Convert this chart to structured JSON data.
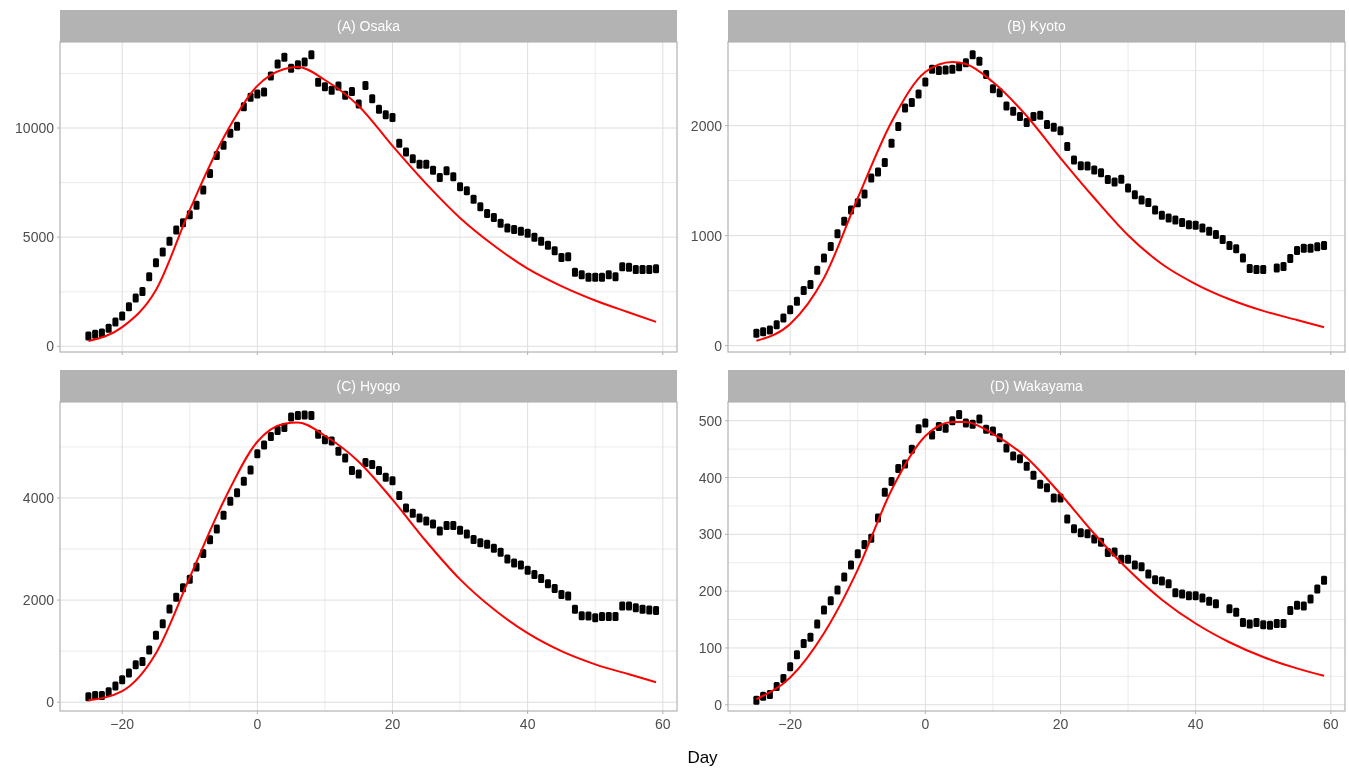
{
  "chart_data": [
    {
      "type": "scatter",
      "title": "(A) Osaka",
      "xlim": [
        -29.2,
        62.1
      ],
      "xticks": [
        -20,
        {
          "value": -10,
          "label": null
        },
        0,
        {
          "value": 10,
          "label": null
        },
        20,
        {
          "value": 30,
          "label": null
        },
        40,
        {
          "value": 50,
          "label": null
        },
        60
      ],
      "ylim": [
        -260,
        13940
      ],
      "yticks": [
        0,
        {
          "value": 2500,
          "label": null
        },
        5000,
        {
          "value": 7500,
          "label": null
        },
        10000,
        {
          "value": 12500,
          "label": null
        }
      ],
      "grid": true,
      "tick_labels": "y",
      "marker": "square",
      "series": [
        {
          "color": "#000000",
          "x": [
            -25,
            -24,
            -23,
            -22,
            -21,
            -20,
            -19,
            -18,
            -17,
            -16,
            -15,
            -14,
            -13,
            -12,
            -11,
            -10,
            -9,
            -8,
            -7,
            -6,
            -5,
            -4,
            -3,
            -2,
            -1,
            0,
            1,
            2,
            3,
            4,
            5,
            6,
            7,
            8,
            9,
            10,
            11,
            12,
            13,
            14,
            15,
            16,
            17,
            18,
            19,
            20,
            21,
            22,
            23,
            24,
            25,
            26,
            27,
            28,
            29,
            30,
            31,
            32,
            33,
            34,
            35,
            36,
            37,
            38,
            39,
            40,
            41,
            42,
            43,
            44,
            45,
            46,
            47,
            48,
            49,
            50,
            51,
            52,
            53,
            54,
            55,
            56,
            57,
            58,
            59
          ],
          "values": [
            476,
            550,
            605,
            824,
            1118,
            1392,
            1814,
            2217,
            2510,
            3188,
            3829,
            4324,
            4818,
            5331,
            5661,
            6027,
            6467,
            7163,
            7914,
            8739,
            9215,
            9765,
            10076,
            10974,
            11413,
            11560,
            11652,
            12384,
            12934,
            13245,
            12732,
            12897,
            13025,
            13355,
            12091,
            11890,
            11725,
            11926,
            11505,
            11670,
            11102,
            11945,
            11340,
            10864,
            10607,
            10479,
            9307,
            8903,
            8592,
            8336,
            8336,
            8061,
            7731,
            8042,
            7768,
            7310,
            7126,
            6742,
            6394,
            6082,
            5899,
            5643,
            5423,
            5349,
            5276,
            5185,
            5001,
            4818,
            4635,
            4378,
            4067,
            4104,
            3389,
            3279,
            3169,
            3169,
            3169,
            3279,
            3188,
            3646,
            3627,
            3517,
            3517,
            3517,
            3554
          ]
        },
        {
          "type": "line",
          "marker": "none",
          "color": "#ff0000",
          "x": [
            -25,
            -20,
            -15,
            -10,
            -5,
            0,
            4,
            6,
            10,
            15,
            20,
            25,
            30,
            35,
            40,
            45,
            50,
            55,
            59
          ],
          "values": [
            240,
            880,
            2580,
            6250,
            9550,
            11930,
            12700,
            12790,
            12200,
            11010,
            9180,
            7440,
            5880,
            4620,
            3560,
            2760,
            2100,
            1550,
            1120
          ]
        }
      ]
    },
    {
      "type": "scatter",
      "title": "(B) Kyoto",
      "xlim": [
        -29.2,
        62.1
      ],
      "xticks": [
        -20,
        {
          "value": -10,
          "label": null
        },
        0,
        {
          "value": 10,
          "label": null
        },
        20,
        {
          "value": 30,
          "label": null
        },
        40,
        {
          "value": 50,
          "label": null
        },
        60
      ],
      "ylim": [
        -58,
        2760
      ],
      "yticks": [
        0,
        {
          "value": 500,
          "label": null
        },
        1000,
        {
          "value": 1500,
          "label": null
        },
        2000,
        {
          "value": 2500,
          "label": null
        }
      ],
      "grid": true,
      "tick_labels": "y",
      "marker": "square",
      "series": [
        {
          "color": "#000000",
          "x": [
            -25,
            -24,
            -23,
            -22,
            -21,
            -20,
            -19,
            -18,
            -17,
            -16,
            -15,
            -14,
            -13,
            -12,
            -11,
            -10,
            -9,
            -8,
            -7,
            -6,
            -5,
            -4,
            -3,
            -2,
            -1,
            0,
            1,
            2,
            3,
            4,
            5,
            6,
            7,
            8,
            9,
            10,
            11,
            12,
            13,
            14,
            15,
            16,
            17,
            18,
            19,
            20,
            21,
            22,
            23,
            24,
            25,
            26,
            27,
            28,
            29,
            30,
            31,
            32,
            33,
            34,
            35,
            36,
            37,
            38,
            39,
            40,
            41,
            42,
            43,
            44,
            45,
            46,
            47,
            48,
            49,
            50,
            51,
            52,
            53,
            54,
            55,
            56,
            57,
            58,
            59
          ],
          "values": [
            113,
            127,
            142,
            189,
            251,
            327,
            404,
            502,
            556,
            684,
            796,
            902,
            1018,
            1131,
            1233,
            1298,
            1378,
            1524,
            1578,
            1665,
            1840,
            1993,
            2160,
            2211,
            2287,
            2396,
            2513,
            2502,
            2505,
            2513,
            2534,
            2571,
            2643,
            2585,
            2465,
            2334,
            2298,
            2178,
            2131,
            2083,
            2029,
            2083,
            2094,
            2011,
            1985,
            1953,
            1811,
            1687,
            1636,
            1633,
            1596,
            1571,
            1509,
            1487,
            1513,
            1433,
            1371,
            1324,
            1302,
            1233,
            1185,
            1160,
            1142,
            1120,
            1098,
            1094,
            1069,
            1040,
            1011,
            964,
            909,
            880,
            796,
            702,
            691,
            691,
            null,
            705,
            720,
            793,
            865,
            884,
            884,
            898,
            909
          ]
        },
        {
          "type": "line",
          "marker": "none",
          "color": "#ff0000",
          "x": [
            -25,
            -20,
            -15,
            -10,
            -5,
            0,
            4,
            6,
            10,
            15,
            20,
            25,
            30,
            35,
            40,
            45,
            50,
            55,
            59
          ],
          "values": [
            44,
            196,
            614,
            1342,
            2033,
            2487,
            2578,
            2560,
            2396,
            2087,
            1705,
            1342,
            1004,
            742,
            560,
            422,
            316,
            233,
            167
          ]
        }
      ]
    },
    {
      "type": "scatter",
      "title": "(C) Hyogo",
      "xlabel": "Day",
      "xlim": [
        -29.2,
        62.1
      ],
      "xticks": [
        -20,
        {
          "value": -10,
          "label": null
        },
        0,
        {
          "value": 10,
          "label": null
        },
        20,
        {
          "value": 30,
          "label": null
        },
        40,
        {
          "value": 50,
          "label": null
        },
        60
      ],
      "ylim": [
        -172,
        5880
      ],
      "yticks": [
        0,
        {
          "value": 1000,
          "label": null
        },
        2000,
        {
          "value": 3000,
          "label": null
        },
        4000,
        {
          "value": 5000,
          "label": null
        }
      ],
      "grid": true,
      "marker": "square",
      "series": [
        {
          "color": "#000000",
          "x": [
            -25,
            -24,
            -23,
            -22,
            -21,
            -20,
            -19,
            -18,
            -17,
            -16,
            -15,
            -14,
            -13,
            -12,
            -11,
            -10,
            -9,
            -8,
            -7,
            -6,
            -5,
            -4,
            -3,
            -2,
            -1,
            0,
            1,
            2,
            3,
            4,
            5,
            6,
            7,
            8,
            9,
            10,
            11,
            12,
            13,
            14,
            15,
            16,
            17,
            18,
            19,
            20,
            21,
            22,
            23,
            24,
            25,
            26,
            27,
            28,
            29,
            30,
            31,
            32,
            33,
            34,
            35,
            36,
            37,
            38,
            39,
            40,
            41,
            42,
            43,
            44,
            45,
            46,
            47,
            48,
            49,
            50,
            51,
            52,
            53,
            54,
            55,
            56,
            57,
            58,
            59
          ],
          "values": [
            109,
            133,
            133,
            203,
            320,
            438,
            570,
            734,
            797,
            1023,
            1313,
            1539,
            1828,
            2055,
            2242,
            2406,
            2648,
            2914,
            3180,
            3391,
            3664,
            3938,
            4102,
            4328,
            4547,
            4867,
            5039,
            5203,
            5320,
            5383,
            5586,
            5617,
            5625,
            5617,
            5250,
            5141,
            5117,
            4914,
            4781,
            4539,
            4469,
            4695,
            4656,
            4539,
            4406,
            4336,
            4047,
            3805,
            3703,
            3609,
            3547,
            3492,
            3352,
            3461,
            3461,
            3367,
            3297,
            3188,
            3125,
            3094,
            3016,
            2938,
            2805,
            2727,
            2688,
            2586,
            2500,
            2422,
            2320,
            2227,
            2109,
            2078,
            1820,
            1695,
            1688,
            1656,
            1680,
            1680,
            1680,
            1883,
            1883,
            1852,
            1820,
            1805,
            1797
          ]
        },
        {
          "type": "line",
          "marker": "none",
          "color": "#ff0000",
          "x": [
            -25,
            -20,
            -15,
            -10,
            -5,
            0,
            4,
            6,
            10,
            15,
            20,
            25,
            30,
            35,
            40,
            45,
            50,
            55,
            59
          ],
          "values": [
            39,
            219,
            961,
            2445,
            3930,
            5102,
            5453,
            5477,
            5219,
            4711,
            3969,
            3148,
            2406,
            1820,
            1352,
            1000,
            742,
            547,
            391
          ]
        }
      ]
    },
    {
      "type": "scatter",
      "title": "(D) Wakayama",
      "xlim": [
        -29.2,
        62.1
      ],
      "xticks": [
        -20,
        {
          "value": -10,
          "label": null
        },
        0,
        {
          "value": 10,
          "label": null
        },
        20,
        {
          "value": 30,
          "label": null
        },
        40,
        {
          "value": 50,
          "label": null
        },
        60
      ],
      "ylim": [
        -11,
        533
      ],
      "yticks": [
        0,
        {
          "value": 50,
          "label": null
        },
        100,
        {
          "value": 150,
          "label": null
        },
        200,
        {
          "value": 250,
          "label": null
        },
        300,
        {
          "value": 350,
          "label": null
        },
        400,
        {
          "value": 450,
          "label": null
        },
        500
      ],
      "grid": true,
      "marker": "square",
      "series": [
        {
          "color": "#000000",
          "x": [
            -25,
            -24,
            -23,
            -22,
            -21,
            -20,
            -19,
            -18,
            -17,
            -16,
            -15,
            -14,
            -13,
            -12,
            -11,
            -10,
            -9,
            -8,
            -7,
            -6,
            -5,
            -4,
            -3,
            -2,
            -1,
            0,
            1,
            2,
            3,
            4,
            5,
            6,
            7,
            8,
            9,
            10,
            11,
            12,
            13,
            14,
            15,
            16,
            17,
            18,
            19,
            20,
            21,
            22,
            23,
            24,
            25,
            26,
            27,
            28,
            29,
            30,
            31,
            32,
            33,
            34,
            35,
            36,
            37,
            38,
            39,
            40,
            41,
            42,
            43,
            44,
            45,
            46,
            47,
            48,
            49,
            50,
            51,
            52,
            53,
            54,
            55,
            56,
            57,
            58,
            59
          ],
          "values": [
            8,
            15,
            18,
            32,
            46,
            67,
            88,
            108,
            119,
            142,
            167,
            183,
            202,
            225,
            246,
            266,
            282,
            293,
            329,
            374,
            393,
            416,
            424,
            450,
            486,
            496,
            475,
            490,
            487,
            500,
            511,
            496,
            494,
            503,
            485,
            482,
            470,
            452,
            438,
            433,
            420,
            404,
            388,
            382,
            364,
            364,
            327,
            310,
            303,
            301,
            292,
            286,
            268,
            269,
            256,
            256,
            246,
            243,
            230,
            220,
            218,
            213,
            197,
            195,
            192,
            192,
            188,
            182,
            178,
            null,
            169,
            163,
            145,
            142,
            145,
            141,
            140,
            143,
            143,
            166,
            175,
            174,
            186,
            204,
            219
          ]
        },
        {
          "type": "line",
          "marker": "none",
          "color": "#ff0000",
          "x": [
            -25,
            -20,
            -15,
            -10,
            -5,
            0,
            4,
            6,
            10,
            15,
            20,
            25,
            30,
            35,
            40,
            45,
            50,
            55,
            59
          ],
          "values": [
            10,
            48,
            126,
            238,
            378,
            473,
            498,
            498,
            477,
            435,
            371,
            301,
            238,
            185,
            143,
            110,
            84,
            64,
            51
          ]
        }
      ]
    }
  ]
}
